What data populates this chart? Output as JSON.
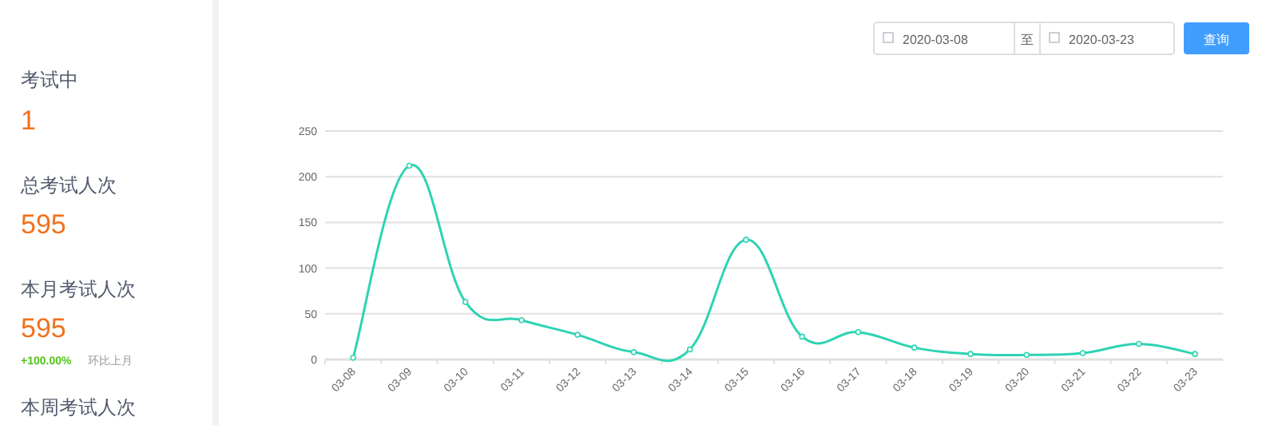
{
  "chart_data": [
    {
      "type": "other",
      "annotations": [
        "考试中",
        "1",
        "总考试人次",
        "595",
        "本月考试人次",
        "595",
        "+100.00%",
        "环比上月",
        "本周考试人次"
      ]
    },
    {
      "type": "line",
      "categories": [
        "03-08",
        "03-09",
        "03-10",
        "03-11",
        "03-12",
        "03-13",
        "03-14",
        "03-15",
        "03-16",
        "03-17",
        "03-18",
        "03-19",
        "03-20",
        "03-21",
        "03-22",
        "03-23"
      ],
      "series": [
        {
          "color": "#2ed3b3",
          "values": [
            2,
            212,
            63,
            43,
            27,
            8,
            11,
            131,
            25,
            30,
            13,
            6,
            5,
            7,
            17,
            6
          ]
        }
      ],
      "ylim": [
        0,
        250
      ],
      "yticks": [
        0,
        50,
        100,
        150,
        200,
        250
      ],
      "grid": "y",
      "marker": "circle",
      "annotations": [
        "2020-03-08",
        "至",
        "2020-03-23",
        "查询"
      ]
    }
  ]
}
